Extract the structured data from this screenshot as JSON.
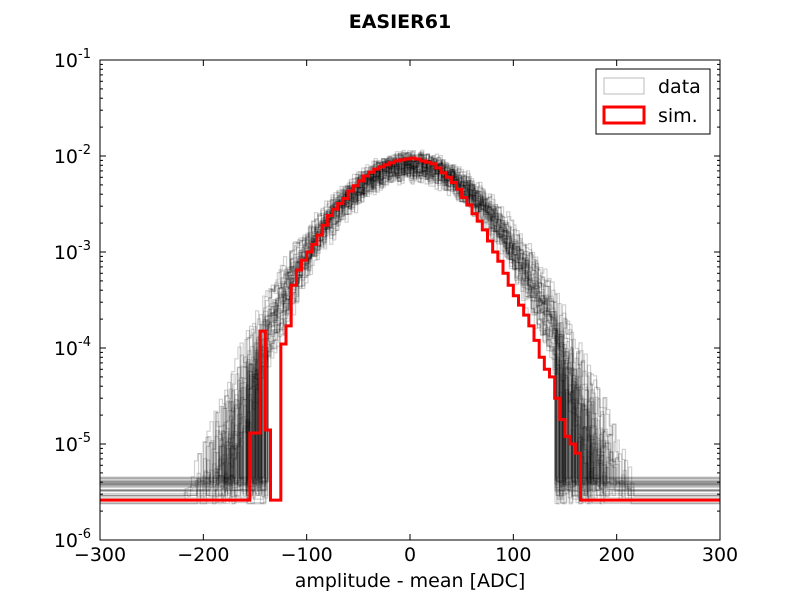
{
  "chart_data": {
    "type": "line",
    "title": "EASIER61",
    "xlabel": "amplitude - mean [ADC]",
    "ylabel": "",
    "xlim": [
      -300,
      300
    ],
    "ylim": [
      1e-06,
      0.1
    ],
    "yscale": "log",
    "grid": false,
    "legend_position": "top-right",
    "x_ticks": [
      -300,
      -200,
      -100,
      0,
      100,
      200,
      300
    ],
    "x_tick_labels": [
      "−300",
      "−200",
      "−100",
      "0",
      "100",
      "200",
      "300"
    ],
    "y_ticks": [
      {
        "base": "10",
        "exp": "-6",
        "value": 1e-06
      },
      {
        "base": "10",
        "exp": "-5",
        "value": 1e-05
      },
      {
        "base": "10",
        "exp": "-4",
        "value": 0.0001
      },
      {
        "base": "10",
        "exp": "-3",
        "value": 0.001
      },
      {
        "base": "10",
        "exp": "-2",
        "value": 0.01
      },
      {
        "base": "10",
        "exp": "-1",
        "value": 0.1
      }
    ],
    "series": [
      {
        "name": "data",
        "color": "#000000",
        "opacity": 0.18,
        "description_profile": "many overlaid channel histograms, gaussian-like, peak ~8e-3 at 0",
        "peak": 0.008,
        "sigma": 50,
        "baseline_floor": 2.6e-06,
        "x_range": [
          -260,
          250
        ],
        "overlay_count": 36
      },
      {
        "name": "sim.",
        "color": "#ff0000",
        "x": [
          -190,
          -175,
          -165,
          -155,
          -145,
          -140,
          -135,
          -125,
          -120,
          -115,
          -110,
          -105,
          -100,
          -95,
          -90,
          -85,
          -80,
          -75,
          -70,
          -65,
          -60,
          -55,
          -50,
          -45,
          -40,
          -35,
          -30,
          -25,
          -20,
          -15,
          -10,
          -5,
          0,
          5,
          10,
          15,
          20,
          25,
          30,
          35,
          40,
          45,
          50,
          55,
          60,
          65,
          70,
          75,
          80,
          85,
          90,
          95,
          100,
          105,
          110,
          115,
          120,
          125,
          130,
          135,
          140,
          145,
          150,
          155,
          160,
          165,
          175,
          185
        ],
        "y": [
          2.6e-06,
          2.6e-06,
          2.6e-06,
          1.3e-05,
          0.00015,
          1.4e-05,
          2.6e-06,
          0.00011,
          0.00017,
          0.00045,
          0.00065,
          0.00082,
          0.001,
          0.0012,
          0.0015,
          0.0019,
          0.0024,
          0.0028,
          0.0032,
          0.0036,
          0.0043,
          0.0049,
          0.0055,
          0.0062,
          0.0068,
          0.0073,
          0.0077,
          0.0081,
          0.0085,
          0.0089,
          0.0091,
          0.0093,
          0.0095,
          0.0093,
          0.0089,
          0.0086,
          0.0083,
          0.0075,
          0.0067,
          0.006,
          0.0053,
          0.0045,
          0.0037,
          0.0031,
          0.0025,
          0.0021,
          0.0017,
          0.0013,
          0.001,
          0.0008,
          0.0006,
          0.00045,
          0.00035,
          0.00028,
          0.00022,
          0.00017,
          0.00012,
          8e-05,
          6e-05,
          5e-05,
          3e-05,
          1.8e-05,
          1.2e-05,
          1e-05,
          8e-06,
          2.6e-06,
          2.6e-06,
          2.6e-06
        ],
        "baseline_floor": 2.6e-06
      }
    ]
  },
  "legend": {
    "items": [
      {
        "label": "data",
        "color": "#bbbbbb"
      },
      {
        "label": "sim.",
        "color": "#ff0000"
      }
    ]
  }
}
